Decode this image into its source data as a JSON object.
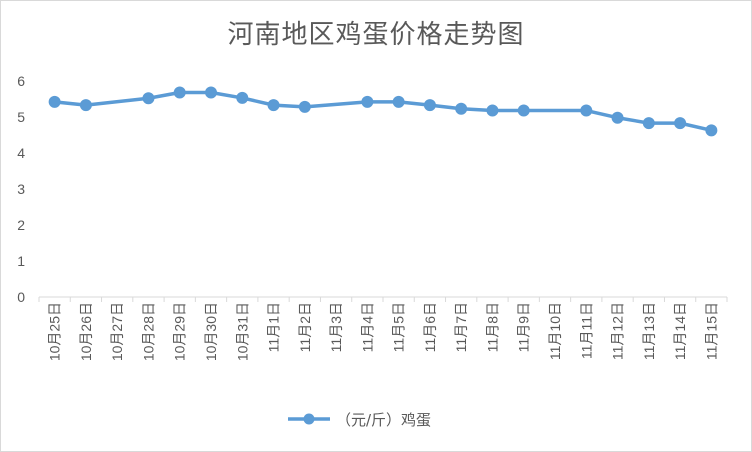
{
  "chart_data": {
    "type": "line",
    "title": "河南地区鸡蛋价格走势图",
    "xlabel": "",
    "ylabel": "",
    "ylim": [
      0,
      6
    ],
    "yticks": [
      0,
      1,
      2,
      3,
      4,
      5,
      6
    ],
    "grid": false,
    "legend_position": "bottom",
    "color": "#5b9bd5",
    "categories": [
      "10月25日",
      "10月26日",
      "10月27日",
      "10月28日",
      "10月29日",
      "10月30日",
      "10月31日",
      "11月1日",
      "11月2日",
      "11月3日",
      "11月4日",
      "11月5日",
      "11月6日",
      "11月7日",
      "11月8日",
      "11月9日",
      "11月10日",
      "11月11日",
      "11月12日",
      "11月13日",
      "11月14日",
      "11月15日"
    ],
    "series": [
      {
        "name": "（元/斤）鸡蛋",
        "values": [
          5.42,
          5.33,
          null,
          5.52,
          5.68,
          5.68,
          5.53,
          5.33,
          5.28,
          null,
          5.42,
          5.42,
          5.33,
          5.23,
          5.18,
          5.18,
          null,
          5.18,
          4.98,
          4.83,
          4.83,
          4.63
        ]
      }
    ]
  }
}
